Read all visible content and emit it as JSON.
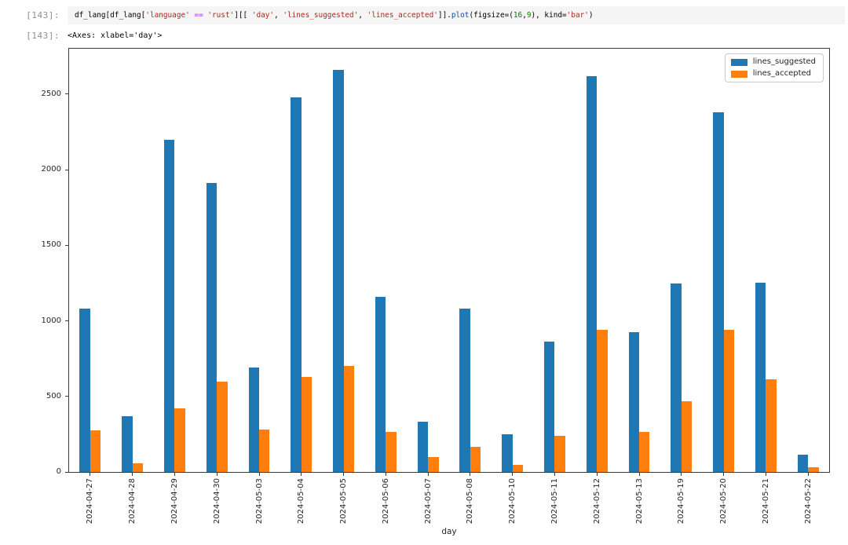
{
  "cells": {
    "input": {
      "prompt": "[143]:",
      "code_tokens": [
        {
          "text": "df_lang[df_lang[",
          "type": "plain"
        },
        {
          "text": "'language'",
          "type": "string"
        },
        {
          "text": " ",
          "type": "plain"
        },
        {
          "text": "==",
          "type": "operator"
        },
        {
          "text": " ",
          "type": "plain"
        },
        {
          "text": "'rust'",
          "type": "string"
        },
        {
          "text": "][[ ",
          "type": "plain"
        },
        {
          "text": "'day'",
          "type": "string"
        },
        {
          "text": ", ",
          "type": "plain"
        },
        {
          "text": "'lines_suggested'",
          "type": "string"
        },
        {
          "text": ", ",
          "type": "plain"
        },
        {
          "text": "'lines_accepted'",
          "type": "string"
        },
        {
          "text": "]].",
          "type": "plain"
        },
        {
          "text": "plot",
          "type": "property"
        },
        {
          "text": "(figsize=(",
          "type": "plain"
        },
        {
          "text": "16",
          "type": "number"
        },
        {
          "text": ",",
          "type": "plain"
        },
        {
          "text": "9",
          "type": "number"
        },
        {
          "text": "), kind=",
          "type": "plain"
        },
        {
          "text": "'bar'",
          "type": "string"
        },
        {
          "text": ")",
          "type": "plain"
        }
      ]
    },
    "output": {
      "prompt": "[143]:",
      "text": "<Axes: xlabel='day'>"
    }
  },
  "chart_data": {
    "type": "bar",
    "title": "",
    "xlabel": "day",
    "ylabel": "",
    "grid": false,
    "legend_position": "upper right",
    "ylim": [
      0,
      2800
    ],
    "yticks": [
      0,
      500,
      1000,
      1500,
      2000,
      2500
    ],
    "categories": [
      "2024-04-27",
      "2024-04-28",
      "2024-04-29",
      "2024-04-30",
      "2024-05-03",
      "2024-05-04",
      "2024-05-05",
      "2024-05-06",
      "2024-05-07",
      "2024-05-08",
      "2024-05-10",
      "2024-05-11",
      "2024-05-12",
      "2024-05-13",
      "2024-05-19",
      "2024-05-20",
      "2024-05-21",
      "2024-05-22"
    ],
    "series": [
      {
        "name": "lines_suggested",
        "color": "#1f77b4",
        "values": [
          1080,
          370,
          2200,
          1910,
          690,
          2480,
          2660,
          1160,
          330,
          1080,
          250,
          860,
          2620,
          925,
          1245,
          2380,
          1250,
          115
        ]
      },
      {
        "name": "lines_accepted",
        "color": "#ff7f0e",
        "values": [
          275,
          55,
          420,
          600,
          280,
          630,
          700,
          265,
          100,
          165,
          45,
          240,
          940,
          265,
          465,
          940,
          615,
          30
        ]
      }
    ]
  },
  "colors": {
    "input_cell_bg": "#f5f5f5",
    "prompt_text": "#8f8f8f",
    "axis_frame": "#3a3a3a",
    "tick_text": "#262626"
  }
}
